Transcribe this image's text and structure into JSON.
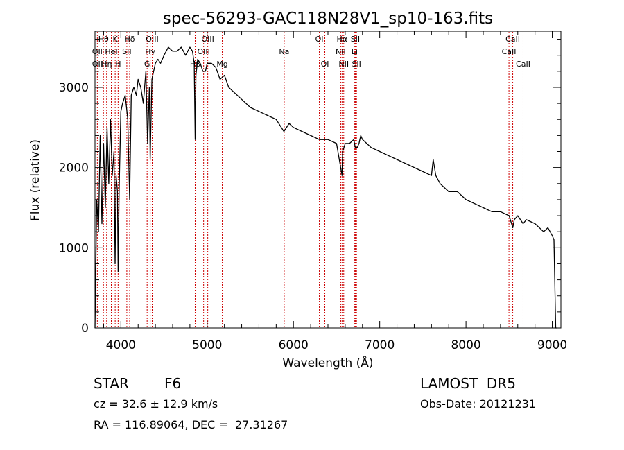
{
  "chart_data": {
    "type": "line",
    "title": "spec-56293-GAC118N28V1_sp10-163.fits",
    "xlabel": "Wavelength (Å)",
    "ylabel": "Flux (relative)",
    "xlim": [
      3700,
      9100
    ],
    "ylim": [
      0,
      3700
    ],
    "xticks": [
      4000,
      5000,
      6000,
      7000,
      8000,
      9000
    ],
    "yticks": [
      0,
      1000,
      2000,
      3000
    ],
    "series": [
      {
        "x": [
          3700,
          3720,
          3740,
          3760,
          3780,
          3800,
          3820,
          3840,
          3860,
          3880,
          3900,
          3920,
          3933,
          3945,
          3960,
          3968,
          3980,
          4000,
          4020,
          4050,
          4080,
          4102,
          4120,
          4150,
          4180,
          4200,
          4230,
          4260,
          4290,
          4310,
          4330,
          4340,
          4360,
          4380,
          4400,
          4430,
          4460,
          4500,
          4550,
          4600,
          4650,
          4700,
          4750,
          4800,
          4830,
          4850,
          4861,
          4870,
          4890,
          4920,
          4950,
          4980,
          5000,
          5050,
          5100,
          5150,
          5200,
          5250,
          5300,
          5400,
          5500,
          5600,
          5700,
          5800,
          5890,
          5950,
          6000,
          6100,
          6200,
          6300,
          6400,
          6500,
          6563,
          6570,
          6600,
          6650,
          6700,
          6717,
          6740,
          6760,
          6780,
          6800,
          6850,
          6900,
          7000,
          7100,
          7200,
          7300,
          7400,
          7500,
          7600,
          7620,
          7650,
          7700,
          7800,
          7900,
          8000,
          8100,
          8200,
          8300,
          8400,
          8500,
          8542,
          8560,
          8600,
          8662,
          8700,
          8800,
          8900,
          8950,
          9000,
          9020,
          9040,
          9050
        ],
        "y": [
          0,
          1600,
          1200,
          2400,
          1300,
          2300,
          1500,
          2500,
          1800,
          2600,
          1900,
          2200,
          800,
          1900,
          1700,
          700,
          1700,
          2700,
          2800,
          2900,
          2600,
          1600,
          2900,
          3000,
          2900,
          3100,
          3000,
          2800,
          3200,
          2300,
          3000,
          2100,
          3100,
          3200,
          3300,
          3350,
          3300,
          3400,
          3500,
          3450,
          3450,
          3500,
          3400,
          3500,
          3450,
          3300,
          2350,
          3150,
          3350,
          3300,
          3200,
          3200,
          3300,
          3300,
          3250,
          3100,
          3150,
          3000,
          2950,
          2850,
          2750,
          2700,
          2650,
          2600,
          2450,
          2550,
          2500,
          2450,
          2400,
          2350,
          2350,
          2300,
          1900,
          2200,
          2300,
          2300,
          2350,
          2250,
          2250,
          2300,
          2400,
          2350,
          2300,
          2250,
          2200,
          2150,
          2100,
          2050,
          2000,
          1950,
          1900,
          2100,
          1900,
          1800,
          1700,
          1700,
          1600,
          1550,
          1500,
          1450,
          1450,
          1400,
          1250,
          1350,
          1400,
          1300,
          1350,
          1300,
          1200,
          1250,
          1150,
          1100,
          0,
          0
        ],
        "color": "#000000"
      }
    ],
    "spectral_lines": [
      {
        "label": "Hθ",
        "x": 3798,
        "row": 0
      },
      {
        "label": "OII",
        "x": 3727,
        "row": 1
      },
      {
        "label": "OII",
        "x": 3727,
        "row": 2
      },
      {
        "label": "K",
        "x": 3934,
        "row": 0
      },
      {
        "label": "HeI",
        "x": 3889,
        "row": 1
      },
      {
        "label": "Hη",
        "x": 3835,
        "row": 2
      },
      {
        "label": "Hδ",
        "x": 4102,
        "row": 0
      },
      {
        "label": "SII",
        "x": 4069,
        "row": 1
      },
      {
        "label": "H",
        "x": 3968,
        "row": 2
      },
      {
        "label": "OIII",
        "x": 4363,
        "row": 0
      },
      {
        "label": "Hγ",
        "x": 4340,
        "row": 1
      },
      {
        "label": "G",
        "x": 4304,
        "row": 2
      },
      {
        "label": "OIII",
        "x": 5007,
        "row": 0
      },
      {
        "label": "OIII",
        "x": 4959,
        "row": 1
      },
      {
        "label": "Hβ",
        "x": 4861,
        "row": 2
      },
      {
        "label": "Mg",
        "x": 5175,
        "row": 2
      },
      {
        "label": "Na",
        "x": 5893,
        "row": 1
      },
      {
        "label": "OI",
        "x": 6300,
        "row": 0
      },
      {
        "label": "OI",
        "x": 6364,
        "row": 2
      },
      {
        "label": "Hα",
        "x": 6563,
        "row": 0
      },
      {
        "label": "SII",
        "x": 6717,
        "row": 0
      },
      {
        "label": "NII",
        "x": 6548,
        "row": 1
      },
      {
        "label": "Li",
        "x": 6708,
        "row": 1
      },
      {
        "label": "NII",
        "x": 6583,
        "row": 2
      },
      {
        "label": "SII",
        "x": 6731,
        "row": 2
      },
      {
        "label": "CaII",
        "x": 8542,
        "row": 0
      },
      {
        "label": "CaII",
        "x": 8498,
        "row": 1
      },
      {
        "label": "CaII",
        "x": 8662,
        "row": 2
      }
    ],
    "line_markers_x": [
      3727,
      3798,
      3835,
      3889,
      3934,
      3968,
      4069,
      4102,
      4304,
      4340,
      4363,
      4861,
      4959,
      5007,
      5175,
      5893,
      6300,
      6364,
      6548,
      6563,
      6583,
      6708,
      6717,
      6731,
      8498,
      8542,
      8662
    ],
    "grid": false,
    "legend": "none"
  },
  "info": {
    "class_label": "STAR",
    "subclass_label": "F6",
    "survey_label": "LAMOST  DR5",
    "cz_text": "cz = 32.6 ± 12.9 km/s",
    "obs_date_text": "Obs-Date: 20121231",
    "coords_text": "RA = 116.89064, DEC =  27.31267"
  },
  "colors": {
    "spectrum": "#000000",
    "line_markers": "#cc0000",
    "background": "#ffffff"
  }
}
